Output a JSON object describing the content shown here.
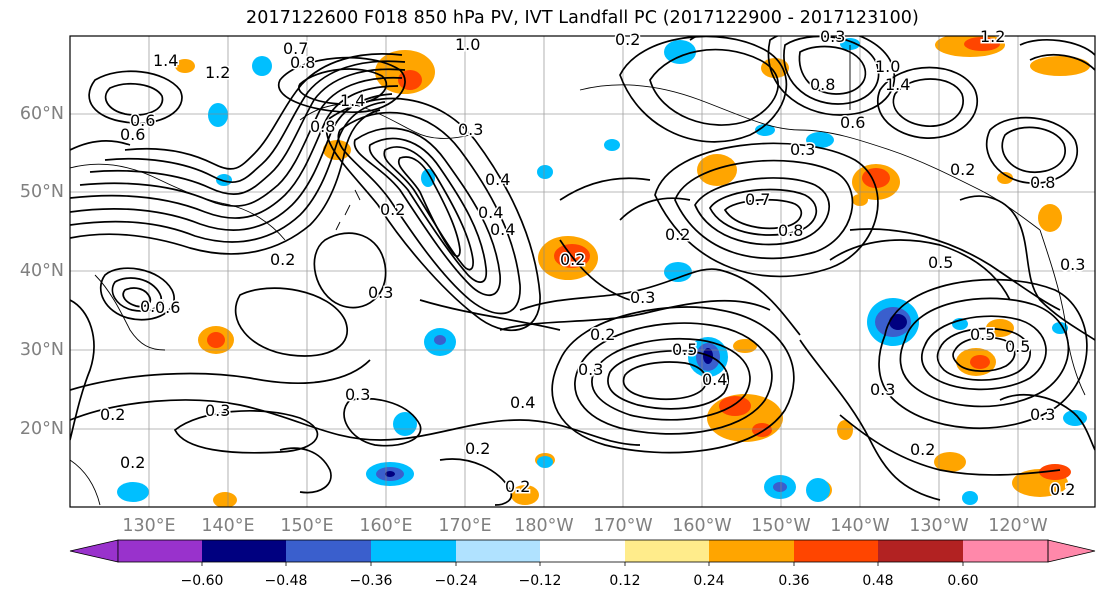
{
  "title": "2017122600 F018 850 hPa PV, IVT Landfall PC (2017122900 - 2017123100)",
  "lat_labels": [
    "60°N",
    "50°N",
    "40°N",
    "30°N",
    "20°N"
  ],
  "lon_labels": [
    "130°E",
    "140°E",
    "150°E",
    "160°E",
    "170°E",
    "180°W",
    "170°W",
    "160°W",
    "150°W",
    "140°W",
    "130°W",
    "120°W"
  ],
  "colorbar": {
    "ticks": [
      "−0.60",
      "−0.48",
      "−0.36",
      "−0.24",
      "−0.12",
      "0.12",
      "0.24",
      "0.36",
      "0.48",
      "0.60"
    ],
    "colors": [
      "#9932CC",
      "#000080",
      "#3A5FCD",
      "#00BFFF",
      "#B0E2FF",
      "#FFFFFF",
      "#FFEC8B",
      "#FFA500",
      "#FF4500",
      "#B22222",
      "#FF88AA"
    ]
  },
  "contour_labels": [
    "0.7",
    "0.8",
    "1.0",
    "1.4",
    "1.2",
    "0.6",
    "0.8",
    "1.4",
    "0.3",
    "0.4",
    "0.2",
    "0.3",
    "0.2",
    "0.6",
    "0.4",
    "0.7",
    "0.8",
    "0.2",
    "0.3",
    "0.5",
    "0.4",
    "0.3",
    "0.2",
    "0.3",
    "0.2",
    "0.5",
    "0.3",
    "0.2",
    "0.3",
    "0.8",
    "1.4",
    "1.0",
    "0.8",
    "0.6",
    "0.2",
    "0.4",
    "0.3",
    "0.2",
    "0.2",
    "0.3",
    "0.3",
    "0.2",
    "0.4",
    "0.3",
    "0.2",
    "0.2",
    "0.5",
    "0.2",
    "1.2",
    "0.6",
    "0.6",
    "0.5"
  ]
}
